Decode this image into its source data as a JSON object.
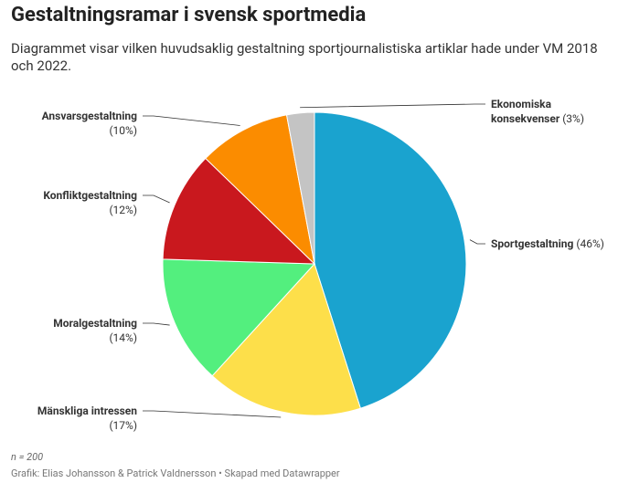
{
  "chart_data": {
    "type": "pie",
    "title": "Gestaltningsramar i svensk sportmedia",
    "subtitle": "Diagrammet visar vilken huvudsaklig gestaltning sportjournalistiska artiklar hade under VM 2018 och 2022.",
    "categories": [
      "Sportgestaltning",
      "Mänskliga intressen",
      "Moralgestaltning",
      "Konfliktgestaltning",
      "Ansvarsgestaltning",
      "Ekonomiska konsekvenser"
    ],
    "values": [
      46,
      17,
      14,
      12,
      10,
      3
    ],
    "value_labels": [
      "(46%)",
      "(17%)",
      "(14%)",
      "(12%)",
      "(10%)",
      "(3%)"
    ],
    "colors": [
      "#1aa3cf",
      "#fddf4a",
      "#53ef7e",
      "#c9181e",
      "#fb8c00",
      "#c4c4c4"
    ],
    "note": "n = 200",
    "source": "Grafik: Elias Johansson & Patrick Valdnersson • Skapad med Datawrapper"
  }
}
